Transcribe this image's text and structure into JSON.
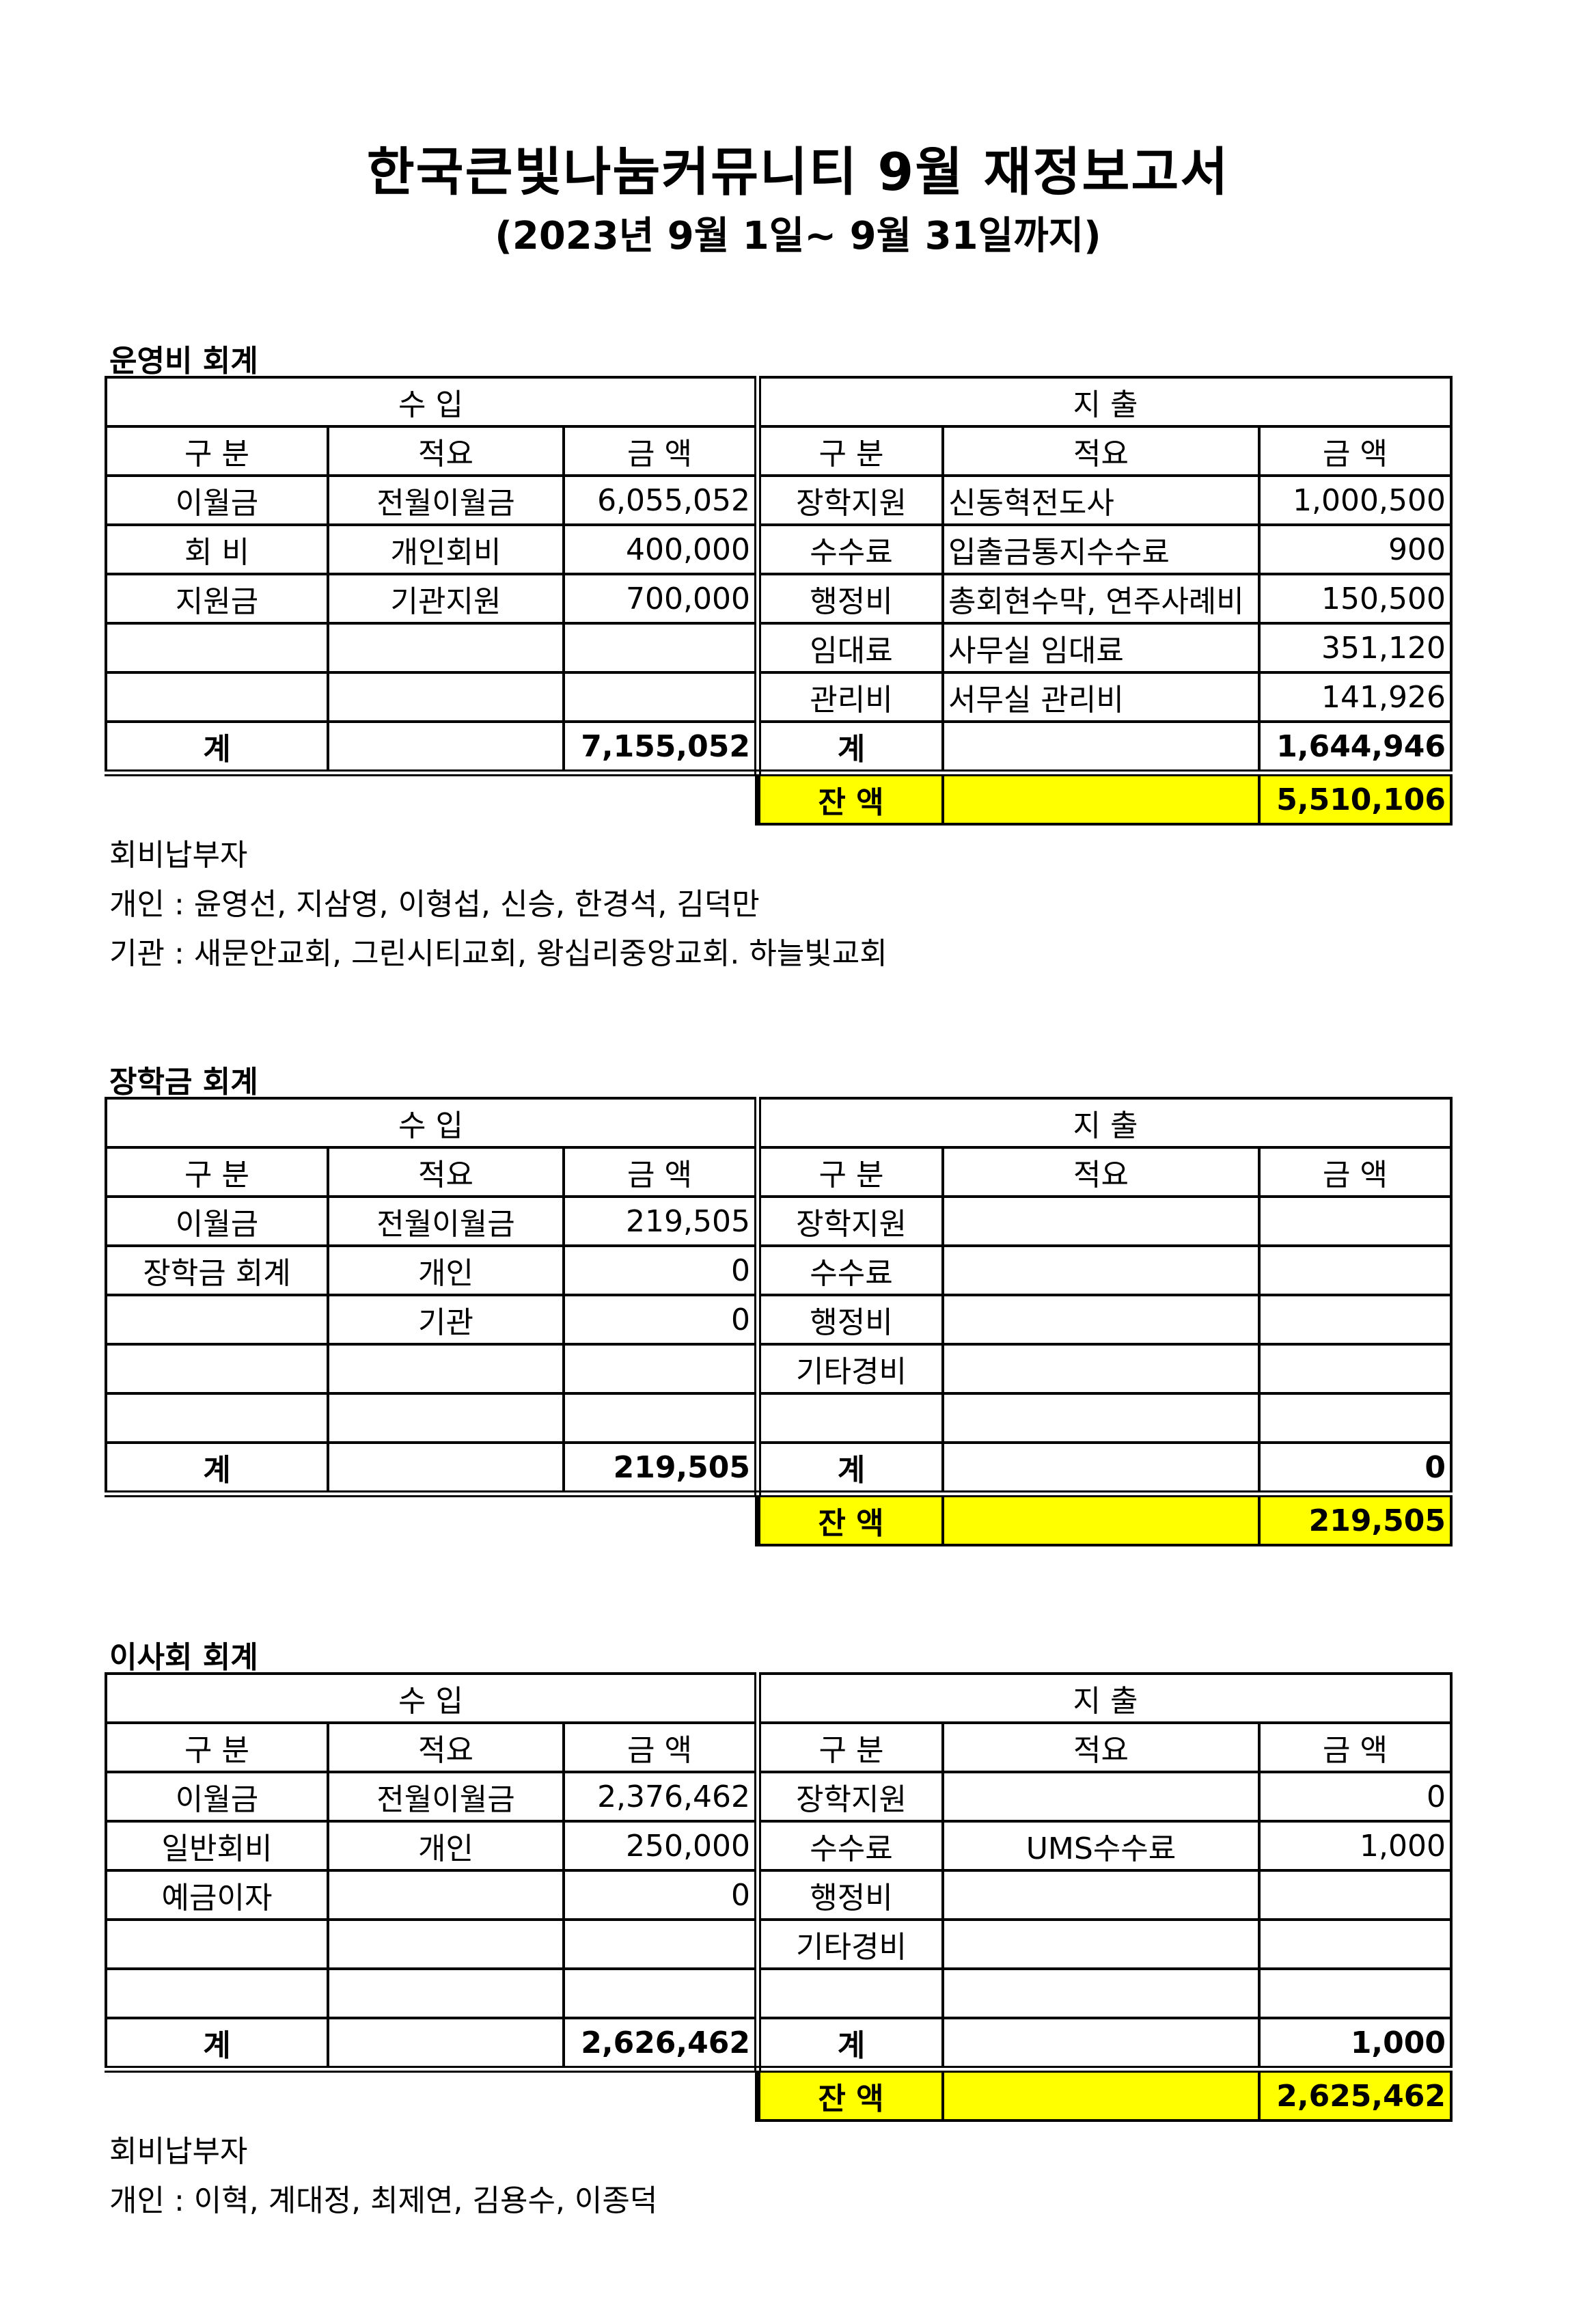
{
  "title": "한국큰빛나눔커뮤니티 9월 재정보고서",
  "subtitle": "(2023년  9월 1일~ 9월 31일까지)",
  "headers": {
    "income": "수  입",
    "expense": "지  출",
    "category": "구  분",
    "description": "적요",
    "amount": "금  액",
    "total": "계",
    "balance": "잔  액"
  },
  "colors": {
    "balance_highlight": "#ffff00"
  },
  "sections": [
    {
      "title": "운영비 회계",
      "income": [
        [
          "이월금",
          "전월이월금",
          "6,055,052"
        ],
        [
          "회  비",
          "개인회비",
          "400,000"
        ],
        [
          "지원금",
          "기관지원",
          "700,000"
        ],
        [
          "",
          "",
          ""
        ],
        [
          "",
          "",
          ""
        ]
      ],
      "expense": [
        [
          "장학지원",
          "신동혁전도사",
          "1,000,500"
        ],
        [
          "수수료",
          "입출금통지수수료",
          "900"
        ],
        [
          "행정비",
          "총회현수막, 연주사례비",
          "150,500"
        ],
        [
          "임대료",
          "사무실 임대료",
          "351,120"
        ],
        [
          "관리비",
          "서무실 관리비",
          "141,926"
        ]
      ],
      "income_total": "7,155,052",
      "expense_total": "1,644,946",
      "balance": "5,510,106",
      "notes": [
        "회비납부자",
        "개인 : 윤영선, 지삼영, 이형섭, 신승, 한경석, 김덕만",
        "기관 : 새문안교회, 그린시티교회, 왕십리중앙교회. 하늘빛교회"
      ]
    },
    {
      "title": "장학금 회계",
      "income": [
        [
          "이월금",
          "전월이월금",
          "219,505"
        ],
        [
          "장학금 회계",
          "개인",
          "0"
        ],
        [
          "",
          "기관",
          "0"
        ],
        [
          "",
          "",
          ""
        ],
        [
          "",
          "",
          ""
        ]
      ],
      "expense": [
        [
          "장학지원",
          "",
          ""
        ],
        [
          "수수료",
          "",
          ""
        ],
        [
          "행정비",
          "",
          ""
        ],
        [
          "기타경비",
          "",
          ""
        ],
        [
          "",
          "",
          ""
        ]
      ],
      "income_total": "219,505",
      "expense_total": "0",
      "balance": "219,505",
      "notes": []
    },
    {
      "title": "이사회 회계",
      "income": [
        [
          "이월금",
          "전월이월금",
          "2,376,462"
        ],
        [
          "일반회비",
          "개인",
          "250,000"
        ],
        [
          "예금이자",
          "",
          "0"
        ],
        [
          "",
          "",
          ""
        ],
        [
          "",
          "",
          ""
        ]
      ],
      "expense": [
        [
          "장학지원",
          "",
          "0"
        ],
        [
          "수수료",
          "UMS수수료",
          "1,000"
        ],
        [
          "행정비",
          "",
          ""
        ],
        [
          "기타경비",
          "",
          ""
        ],
        [
          "",
          "",
          ""
        ]
      ],
      "income_total": "2,626,462",
      "expense_total": "1,000",
      "balance": "2,625,462",
      "notes": [
        "회비납부자",
        "개인 : 이혁, 계대정, 최제연, 김용수, 이종덕"
      ]
    }
  ]
}
